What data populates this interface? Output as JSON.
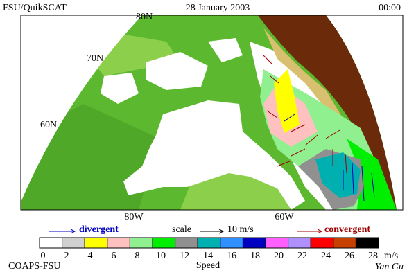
{
  "header": {
    "title": "FSU/QuikSCAT",
    "date": "28 January 2003",
    "time": "00:00"
  },
  "map": {
    "lat_labels": [
      "80N",
      "70N",
      "60N"
    ],
    "lon_labels": [
      "80W",
      "60W"
    ]
  },
  "legend": {
    "divergent": "divergent",
    "scale": "scale",
    "scale_value": "10 m/s",
    "convergent": "convergent"
  },
  "colorbar": {
    "ticks": [
      0,
      2,
      4,
      6,
      8,
      10,
      12,
      14,
      16,
      18,
      20,
      22,
      24,
      26,
      28
    ],
    "unit": "m/s",
    "label": "Speed",
    "colors": [
      "#ffffff",
      "#d0d0d0",
      "#ffff00",
      "#ffc0c0",
      "#90f090",
      "#00ee00",
      "#909090",
      "#00b0b0",
      "#3090ff",
      "#0000c0",
      "#ff60ff",
      "#b090ff",
      "#ff0000",
      "#c84000",
      "#000000"
    ]
  },
  "footer": {
    "left": "COAPS-FSU",
    "right": "Yan Gu"
  }
}
